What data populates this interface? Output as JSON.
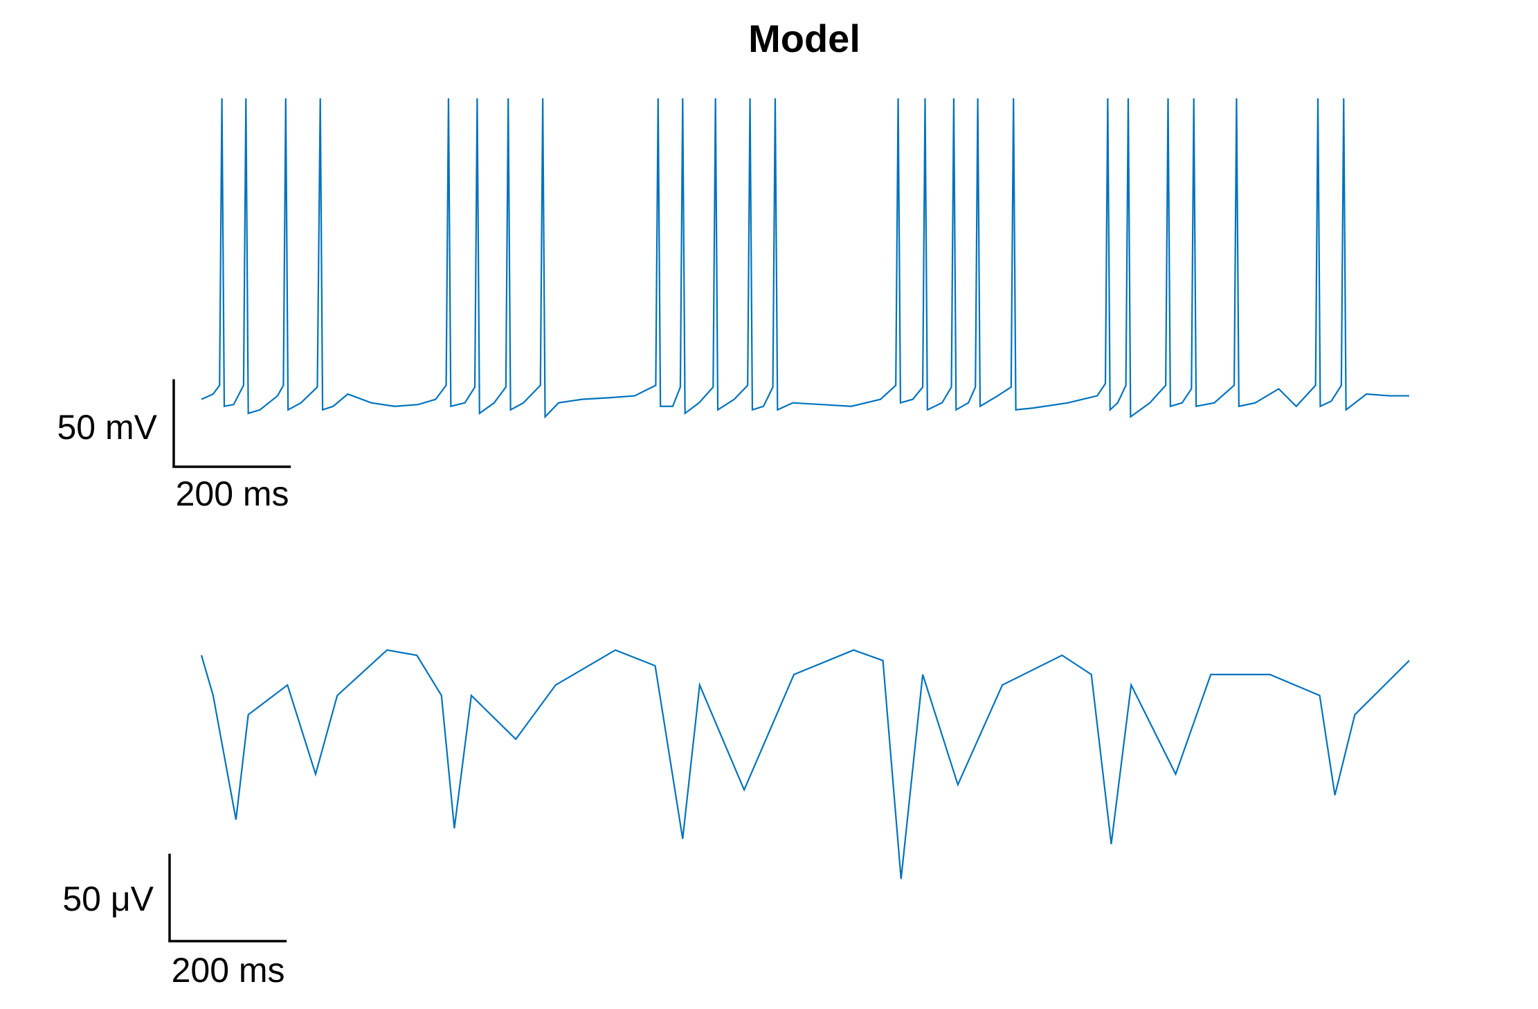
{
  "chart_data": [
    {
      "type": "line",
      "title": "Model",
      "color": "#0072BD",
      "xlim": [
        0,
        2063
      ],
      "ylim": [
        -80,
        106
      ],
      "x": [
        0,
        20,
        31,
        35,
        39,
        55,
        72,
        76,
        80,
        100,
        130,
        140,
        144,
        148,
        170,
        198,
        203,
        207,
        225,
        250,
        290,
        330,
        370,
        400,
        418,
        422,
        426,
        450,
        467,
        471,
        475,
        500,
        520,
        524,
        528,
        550,
        579,
        583,
        587,
        610,
        650,
        700,
        740,
        776,
        780,
        784,
        805,
        818,
        822,
        826,
        850,
        874,
        878,
        882,
        910,
        933,
        937,
        941,
        960,
        976,
        980,
        984,
        1010,
        1060,
        1110,
        1160,
        1186,
        1190,
        1194,
        1215,
        1232,
        1236,
        1240,
        1265,
        1281,
        1285,
        1289,
        1310,
        1322,
        1326,
        1330,
        1360,
        1383,
        1387,
        1391,
        1420,
        1480,
        1530,
        1544,
        1548,
        1552,
        1565,
        1579,
        1583,
        1587,
        1620,
        1647,
        1651,
        1655,
        1675,
        1691,
        1695,
        1699,
        1730,
        1764,
        1768,
        1772,
        1800,
        1840,
        1870,
        1903,
        1907,
        1911,
        1930,
        1947,
        1951,
        1955,
        1990,
        2030,
        2063
      ],
      "values": [
        -66,
        -63,
        -58,
        106,
        -70,
        -69,
        -58,
        106,
        -74,
        -72,
        -64,
        -58,
        106,
        -72,
        -68,
        -59,
        106,
        -72,
        -70,
        -63,
        -68,
        -70,
        -69,
        -66,
        -58,
        106,
        -70,
        -68,
        -59,
        106,
        -74,
        -68,
        -59,
        106,
        -72,
        -68,
        -58,
        106,
        -76,
        -68,
        -66,
        -65,
        -64,
        -58,
        106,
        -70,
        -70,
        -59,
        106,
        -74,
        -68,
        -59,
        106,
        -72,
        -66,
        -58,
        106,
        -72,
        -70,
        -59,
        106,
        -72,
        -68,
        -69,
        -70,
        -66,
        -58,
        106,
        -68,
        -66,
        -59,
        106,
        -72,
        -68,
        -59,
        106,
        -72,
        -68,
        -59,
        106,
        -70,
        -64,
        -59,
        106,
        -72,
        -71,
        -68,
        -64,
        -57,
        106,
        -72,
        -68,
        -58,
        106,
        -76,
        -68,
        -58,
        106,
        -70,
        -68,
        -60,
        106,
        -70,
        -68,
        -58,
        106,
        -70,
        -68,
        -60,
        -70,
        -58,
        106,
        -70,
        -67,
        -58,
        106,
        -72,
        -63,
        -64,
        -64
      ],
      "scale_bar_y": {
        "value": 50,
        "label": "50 mV"
      },
      "scale_bar_x": {
        "value": 200,
        "label": "200 ms"
      }
    },
    {
      "type": "line",
      "color": "#0072BD",
      "xlim": [
        0,
        2063
      ],
      "ylim": [
        -135,
        10
      ],
      "x": [
        0,
        20,
        59,
        80,
        147,
        195,
        232,
        317,
        368,
        410,
        432,
        461,
        537,
        605,
        707,
        775,
        822,
        851,
        927,
        1012,
        1114,
        1164,
        1195,
        1232,
        1292,
        1368,
        1470,
        1520,
        1554,
        1588,
        1664,
        1724,
        1825,
        1910,
        1936,
        1970,
        2063
      ],
      "values": [
        0,
        -23,
        -94,
        -34,
        -17,
        -68,
        -23,
        3,
        0,
        -23,
        -99,
        -23,
        -48,
        -17,
        3,
        -6,
        -105,
        -17,
        -77,
        -11,
        3,
        -3,
        -128,
        -11,
        -74,
        -17,
        0,
        -11,
        -108,
        -17,
        -68,
        -11,
        -11,
        -23,
        -80,
        -34,
        -3
      ],
      "scale_bar_y": {
        "value": 50,
        "label": "50 μV"
      },
      "scale_bar_x": {
        "value": 200,
        "label": "200 ms"
      }
    }
  ]
}
